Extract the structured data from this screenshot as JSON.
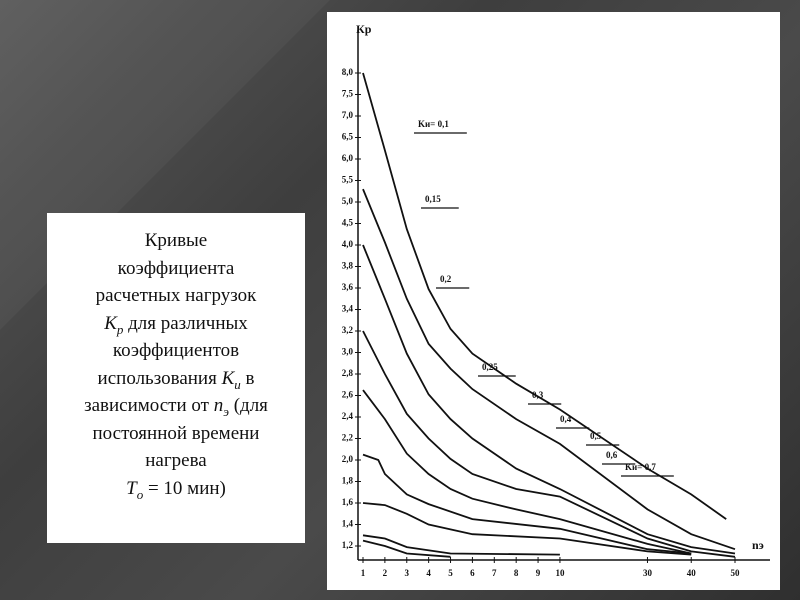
{
  "caption": [
    "Кривые",
    "коэффициента",
    "расчетных нагрузок",
    "К",
    "р",
    " для различных",
    "коэффициентов",
    "использования ",
    "К",
    "и",
    " в",
    "зависимости от ",
    "n",
    "э",
    " (для",
    "постоянной времени",
    "нагрева",
    "Т",
    "о",
    " = 10 мин)"
  ],
  "chart_data": {
    "type": "line",
    "y_label": "Кр",
    "x_label": "nэ",
    "ylim": [
      1.1,
      9.0
    ],
    "xlim": [
      0.6,
      59
    ],
    "yticks": [
      {
        "value": 8.0,
        "label": "8,0"
      },
      {
        "value": 7.5,
        "label": "7,5"
      },
      {
        "value": 7.0,
        "label": "7,0"
      },
      {
        "value": 6.5,
        "label": "6,5"
      },
      {
        "value": 6.0,
        "label": "6,0"
      },
      {
        "value": 5.5,
        "label": "5,5"
      },
      {
        "value": 5.0,
        "label": "5,0"
      },
      {
        "value": 4.5,
        "label": "4,5"
      },
      {
        "value": 4.0,
        "label": "4,0"
      },
      {
        "value": 3.8,
        "label": "3,8"
      },
      {
        "value": 3.6,
        "label": "3,6"
      },
      {
        "value": 3.4,
        "label": "3,4"
      },
      {
        "value": 3.2,
        "label": "3,2"
      },
      {
        "value": 3.0,
        "label": "3,0"
      },
      {
        "value": 2.8,
        "label": "2,8"
      },
      {
        "value": 2.6,
        "label": "2,6"
      },
      {
        "value": 2.4,
        "label": "2,4"
      },
      {
        "value": 2.2,
        "label": "2,2"
      },
      {
        "value": 2.0,
        "label": "2,0"
      },
      {
        "value": 1.8,
        "label": "1,8"
      },
      {
        "value": 1.6,
        "label": "1,6"
      },
      {
        "value": 1.4,
        "label": "1,4"
      },
      {
        "value": 1.2,
        "label": "1,2"
      }
    ],
    "xticks": [
      1,
      2,
      3,
      4,
      5,
      6,
      7,
      8,
      9,
      10,
      30,
      40,
      50
    ],
    "series": [
      {
        "name": "Kи= 0,1",
        "color": "#111111",
        "x": [
          1,
          2,
          3,
          4,
          5,
          6,
          8,
          10,
          30,
          40,
          48
        ],
        "values": [
          8.0,
          6.2,
          4.37,
          3.59,
          3.22,
          2.99,
          2.71,
          2.47,
          1.92,
          1.68,
          1.45
        ]
      },
      {
        "name": "0,15",
        "color": "#111111",
        "x": [
          1,
          2,
          3,
          4,
          5,
          6,
          8,
          10,
          30,
          40,
          50
        ],
        "values": [
          5.3,
          4.06,
          3.5,
          3.08,
          2.85,
          2.66,
          2.38,
          2.15,
          1.54,
          1.31,
          1.17
        ]
      },
      {
        "name": "0,2",
        "color": "#111111",
        "x": [
          1,
          2,
          3,
          4,
          5,
          6,
          8,
          10,
          30,
          40,
          50
        ],
        "values": [
          4.0,
          3.5,
          2.99,
          2.61,
          2.38,
          2.2,
          1.92,
          1.73,
          1.31,
          1.19,
          1.13
        ]
      },
      {
        "name": "0,25",
        "color": "#111111",
        "x": [
          1,
          2,
          3,
          4,
          5,
          6,
          8,
          10,
          30,
          40,
          50
        ],
        "values": [
          3.2,
          2.8,
          2.43,
          2.2,
          2.01,
          1.87,
          1.73,
          1.66,
          1.27,
          1.15,
          1.1
        ]
      },
      {
        "name": "0,3",
        "color": "#111111",
        "x": [
          1,
          2,
          3,
          4,
          5,
          6,
          8,
          10,
          30,
          40
        ],
        "values": [
          2.65,
          2.38,
          2.06,
          1.87,
          1.73,
          1.64,
          1.54,
          1.45,
          1.22,
          1.13
        ]
      },
      {
        "name": "0,4",
        "color": "#111111",
        "x": [
          1,
          1.7,
          2,
          3,
          4,
          6,
          10,
          30,
          40
        ],
        "values": [
          2.05,
          2.0,
          1.87,
          1.68,
          1.59,
          1.45,
          1.36,
          1.17,
          1.13
        ]
      },
      {
        "name": "0,5",
        "color": "#111111",
        "x": [
          1,
          2,
          3,
          4,
          6,
          10,
          30,
          40
        ],
        "values": [
          1.6,
          1.58,
          1.5,
          1.4,
          1.31,
          1.27,
          1.15,
          1.12
        ]
      },
      {
        "name": "0,6",
        "color": "#111111",
        "x": [
          1,
          2,
          3,
          5,
          10
        ],
        "values": [
          1.3,
          1.27,
          1.19,
          1.13,
          1.12
        ]
      },
      {
        "name": "Kи= 0,7",
        "color": "#111111",
        "x": [
          1,
          2,
          3,
          5
        ],
        "values": [
          1.25,
          1.2,
          1.13,
          1.1
        ]
      }
    ]
  }
}
